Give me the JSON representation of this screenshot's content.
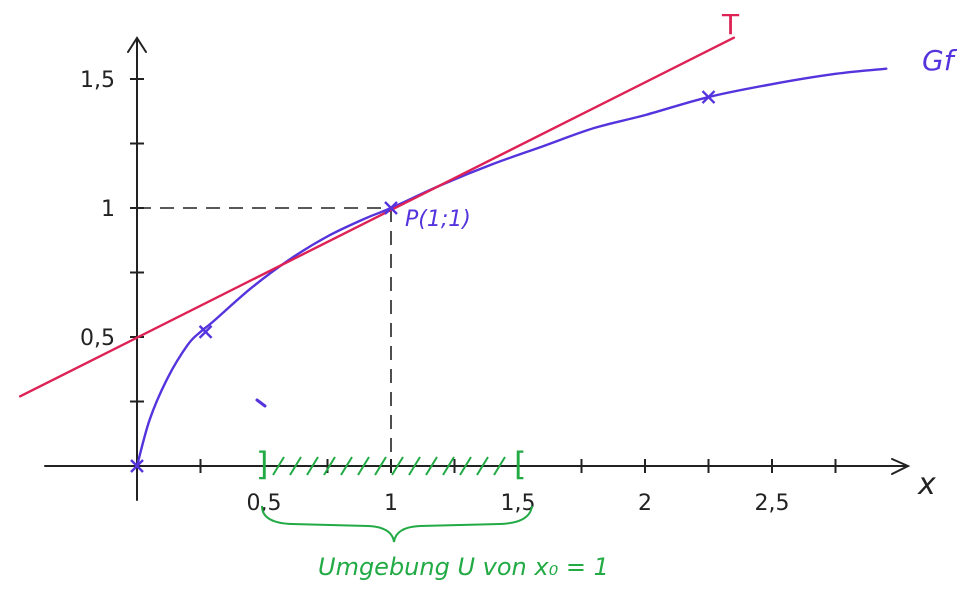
{
  "labels": {
    "x_axis": "x",
    "curve": "Gf",
    "tangent": "T",
    "point": "P(1;1)",
    "neighborhood": "Umgebung U von x₀ = 1",
    "interval_left_bracket": "]",
    "interval_right_bracket": "["
  },
  "chart_data": {
    "type": "line",
    "x_ticks": [
      {
        "value": 0.5,
        "label": "0,5"
      },
      {
        "value": 1,
        "label": "1"
      },
      {
        "value": 1.5,
        "label": "1,5"
      },
      {
        "value": 2,
        "label": "2"
      },
      {
        "value": 2.5,
        "label": "2,5"
      }
    ],
    "y_ticks": [
      {
        "value": 0.5,
        "label": "0,5"
      },
      {
        "value": 1,
        "label": "1"
      },
      {
        "value": 1.5,
        "label": "1,5"
      }
    ],
    "xlim": [
      -0.35,
      2.9
    ],
    "ylim": [
      0,
      1.63
    ],
    "series": [
      {
        "name": "Gf",
        "color": "#5533dd",
        "x": [
          0,
          0.05,
          0.12,
          0.2,
          0.25,
          0.3,
          0.45,
          0.6,
          0.75,
          0.9,
          1.0,
          1.2,
          1.4,
          1.6,
          1.8,
          2.0,
          2.25,
          2.5,
          2.75,
          2.95
        ],
        "y": [
          0,
          0.18,
          0.34,
          0.47,
          0.52,
          0.56,
          0.69,
          0.8,
          0.89,
          0.96,
          1.0,
          1.09,
          1.17,
          1.24,
          1.31,
          1.36,
          1.43,
          1.48,
          1.52,
          1.54
        ]
      },
      {
        "name": "T",
        "color": "#dd2255",
        "x": [
          -0.46,
          2.35
        ],
        "y": [
          0.27,
          1.66
        ]
      }
    ],
    "marked_points": [
      {
        "x": 0,
        "y": 0
      },
      {
        "x": 0.27,
        "y": 0.52
      },
      {
        "x": 1,
        "y": 1
      },
      {
        "x": 2.25,
        "y": 1.43
      }
    ],
    "highlight_interval": {
      "from": 0.5,
      "to": 1.5,
      "color": "#22aa44"
    }
  }
}
